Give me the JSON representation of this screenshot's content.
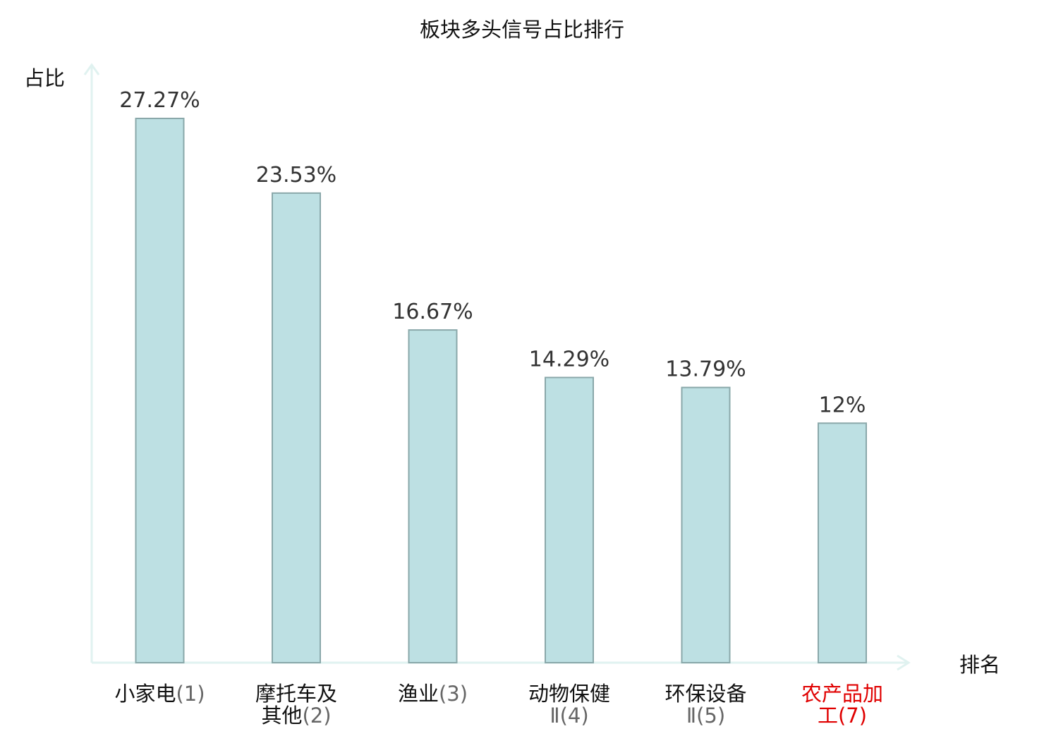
{
  "chart_data": {
    "type": "bar",
    "title": "板块多头信号占比排行",
    "ylabel": "占比",
    "xlabel": "排名",
    "categories": [
      {
        "lines": [
          {
            "name": "小家电",
            "rank": "(1)"
          }
        ],
        "highlight": false
      },
      {
        "lines": [
          {
            "name": "摩托车及",
            "rank": ""
          },
          {
            "name": "其他",
            "rank": "(2)"
          }
        ],
        "highlight": false
      },
      {
        "lines": [
          {
            "name": "渔业",
            "rank": "(3)"
          }
        ],
        "highlight": false
      },
      {
        "lines": [
          {
            "name": "动物保健",
            "rank": ""
          },
          {
            "name": "",
            "rank": "Ⅱ(4)"
          }
        ],
        "highlight": false
      },
      {
        "lines": [
          {
            "name": "环保设备",
            "rank": ""
          },
          {
            "name": "",
            "rank": "Ⅱ(5)"
          }
        ],
        "highlight": false
      },
      {
        "lines": [
          {
            "name": "农产品加",
            "rank": ""
          },
          {
            "name": "工",
            "rank": "(7)"
          }
        ],
        "highlight": true
      }
    ],
    "values": [
      27.27,
      23.53,
      16.67,
      14.29,
      13.79,
      12
    ],
    "value_labels": [
      "27.27%",
      "23.53%",
      "16.67%",
      "14.29%",
      "13.79%",
      "12%"
    ],
    "ylim": [
      0,
      27.27
    ],
    "grid": false,
    "colors": {
      "bar_fill": "#bde0e3",
      "bar_stroke": "#8aa8aa",
      "axis": "#e0f2f0",
      "label_text": "#333333",
      "category_text": "#111111",
      "rank_text": "#666666",
      "highlight_text": "#e00000"
    }
  }
}
